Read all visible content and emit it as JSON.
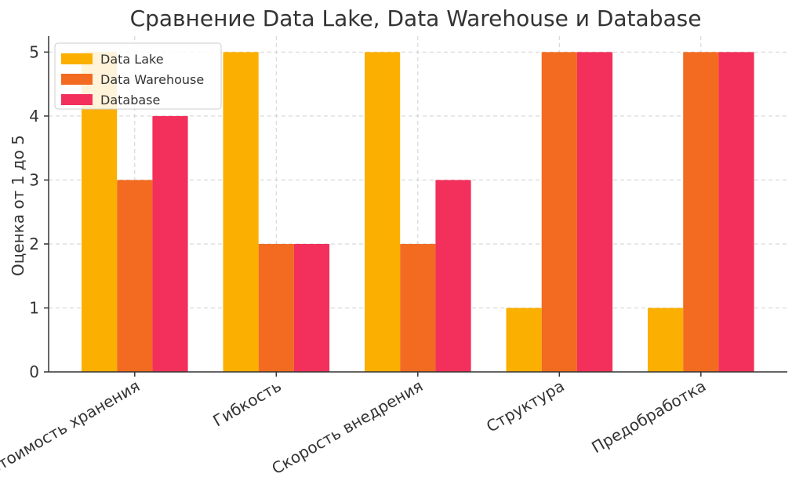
{
  "chart_data": {
    "type": "bar",
    "title": "Сравнение Data Lake, Data Warehouse и Database",
    "xlabel": "",
    "ylabel": "Оценка от 1 до 5",
    "categories": [
      "Стоимость хранения",
      "Гибкость",
      "Скорость внедрения",
      "Структура",
      "Предобработка"
    ],
    "series": [
      {
        "name": "Data Lake",
        "color": "#FBAF00",
        "values": [
          5,
          5,
          5,
          1,
          1
        ]
      },
      {
        "name": "Data Warehouse",
        "color": "#F26B21",
        "values": [
          3,
          2,
          2,
          5,
          5
        ]
      },
      {
        "name": "Database",
        "color": "#F2305B",
        "values": [
          4,
          2,
          3,
          5,
          5
        ]
      }
    ],
    "ylim": [
      0,
      5.25
    ],
    "yticks": [
      "0",
      "1",
      "2",
      "3",
      "4",
      "5"
    ],
    "grid": true,
    "legend_position": "top-left"
  }
}
